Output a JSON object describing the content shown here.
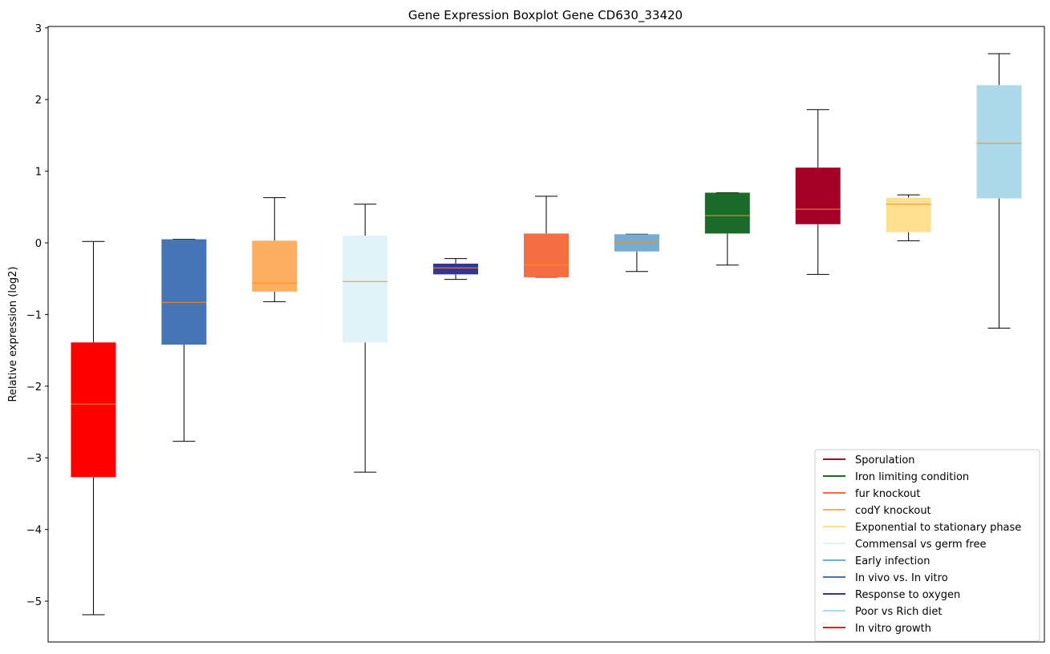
{
  "chart_data": {
    "type": "box",
    "title": "Gene Expression Boxplot Gene CD630_33420",
    "xlabel": "",
    "ylabel": "Relative expression (log2)",
    "ylim": [
      -5.57,
      3.02
    ],
    "yticks": [
      -5,
      -4,
      -3,
      -2,
      -1,
      0,
      1,
      2,
      3
    ],
    "ytick_labels": [
      "−5",
      "−4",
      "−3",
      "−2",
      "−1",
      "0",
      "1",
      "2",
      "3"
    ],
    "legend_position": "lower-right",
    "median_color": "#ff8c1a",
    "boxes": [
      {
        "name": "In vitro growth",
        "color": "#ff0000",
        "whislo": -5.19,
        "q1": -3.27,
        "med": -2.25,
        "q3": -1.39,
        "whishi": 0.02
      },
      {
        "name": "In vivo vs. In vitro",
        "color": "#4575b4",
        "whislo": -2.77,
        "q1": -1.42,
        "med": -0.83,
        "q3": 0.05,
        "whishi": 0.05
      },
      {
        "name": "codY knockout",
        "color": "#fdae61",
        "whislo": -0.82,
        "q1": -0.68,
        "med": -0.56,
        "q3": 0.03,
        "whishi": 0.63
      },
      {
        "name": "Commensal vs germ free",
        "color": "#e0f3f8",
        "whislo": -3.2,
        "q1": -1.39,
        "med": -0.54,
        "q3": 0.1,
        "whishi": 0.54
      },
      {
        "name": "Response to oxygen",
        "color": "#313695",
        "whislo": -0.51,
        "q1": -0.44,
        "med": -0.35,
        "q3": -0.29,
        "whishi": -0.22
      },
      {
        "name": "fur knockout",
        "color": "#f46d43",
        "whislo": -0.48,
        "q1": -0.48,
        "med": -0.31,
        "q3": 0.13,
        "whishi": 0.65
      },
      {
        "name": "Early infection",
        "color": "#74add1",
        "whislo": -0.4,
        "q1": -0.12,
        "med": 0.01,
        "q3": 0.12,
        "whishi": 0.12
      },
      {
        "name": "Iron limiting condition",
        "color": "#1a6b2a",
        "whislo": -0.31,
        "q1": 0.13,
        "med": 0.38,
        "q3": 0.7,
        "whishi": 0.7
      },
      {
        "name": "Sporulation",
        "color": "#a50026",
        "whislo": -0.44,
        "q1": 0.26,
        "med": 0.47,
        "q3": 1.05,
        "whishi": 1.86
      },
      {
        "name": "Exponential to stationary phase",
        "color": "#fee090",
        "whislo": 0.03,
        "q1": 0.15,
        "med": 0.54,
        "q3": 0.63,
        "whishi": 0.67
      },
      {
        "name": "Poor vs Rich diet",
        "color": "#abd9e9",
        "whislo": -1.19,
        "q1": 0.62,
        "med": 1.39,
        "q3": 2.2,
        "whishi": 2.64
      }
    ],
    "legend": [
      {
        "label": "Sporulation",
        "color": "#a50026"
      },
      {
        "label": "Iron limiting condition",
        "color": "#1a6b2a"
      },
      {
        "label": "fur knockout",
        "color": "#f46d43"
      },
      {
        "label": "codY knockout",
        "color": "#fdae61"
      },
      {
        "label": "Exponential to stationary phase",
        "color": "#fee090"
      },
      {
        "label": "Commensal vs germ free",
        "color": "#e0f3f8"
      },
      {
        "label": "Early infection",
        "color": "#74add1"
      },
      {
        "label": "In vivo vs. In vitro",
        "color": "#4575b4"
      },
      {
        "label": "Response to oxygen",
        "color": "#313695"
      },
      {
        "label": "Poor vs Rich diet",
        "color": "#abd9e9"
      },
      {
        "label": "In vitro growth",
        "color": "#ff0000"
      }
    ]
  }
}
